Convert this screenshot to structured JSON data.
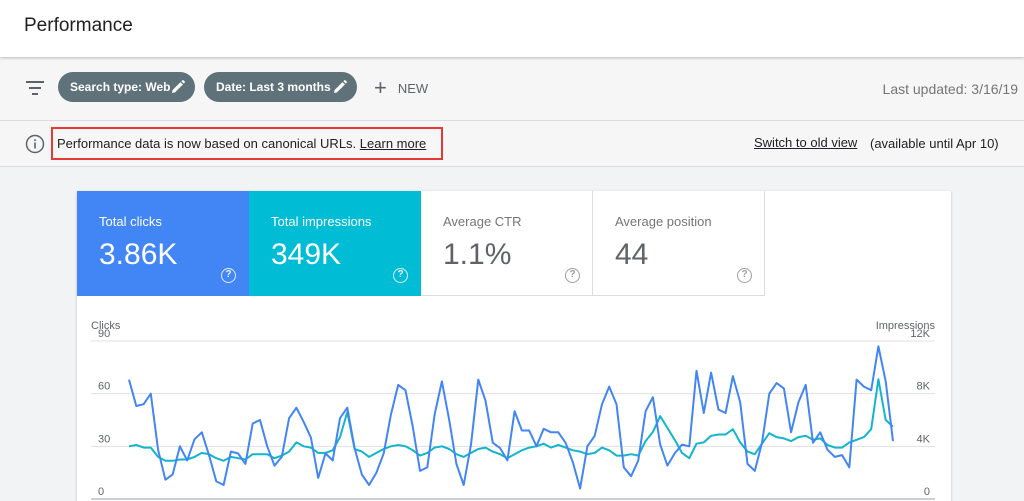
{
  "header": {
    "title": "Performance"
  },
  "filters": {
    "chips": [
      {
        "label": "Search type: Web"
      },
      {
        "label": "Date: Last 3 months"
      }
    ],
    "new_label": "NEW",
    "last_updated": "Last updated: 3/16/19"
  },
  "notice": {
    "text": "Performance data is now based on canonical URLs.",
    "link": "Learn more",
    "switch_link": "Switch to old view",
    "availability": "(available until Apr 10)"
  },
  "metrics": [
    {
      "label": "Total clicks",
      "value": "3.86K",
      "color": "#4285f4"
    },
    {
      "label": "Total impressions",
      "value": "349K",
      "color": "#00bcd4"
    },
    {
      "label": "Average CTR",
      "value": "1.1%"
    },
    {
      "label": "Average position",
      "value": "44"
    }
  ],
  "icons": {
    "filter": "filter-icon",
    "edit": "pencil-icon",
    "add": "plus-icon",
    "info": "info-icon",
    "help": "help-icon"
  },
  "chart_data": {
    "type": "line",
    "left_axis_label": "Clicks",
    "right_axis_label": "Impressions",
    "left_ticks": [
      "90",
      "60",
      "30",
      "0"
    ],
    "right_ticks": [
      "12K",
      "8K",
      "4K",
      "0"
    ],
    "ylim_left": [
      0,
      90
    ],
    "ylim_right": [
      0,
      12000
    ],
    "grid": true,
    "series": [
      {
        "name": "Clicks",
        "color": "#4285f4",
        "axis": "left",
        "values": [
          68,
          53,
          54,
          60,
          28,
          11,
          14,
          30,
          22,
          34,
          38,
          25,
          10,
          8,
          27,
          26,
          20,
          43,
          45,
          30,
          19,
          24,
          46,
          52,
          44,
          35,
          12,
          26,
          22,
          46,
          52,
          29,
          14,
          8,
          15,
          26,
          48,
          65,
          62,
          41,
          16,
          18,
          48,
          67,
          45,
          20,
          8,
          31,
          68,
          56,
          32,
          29,
          22,
          50,
          39,
          39,
          30,
          40,
          38,
          38,
          32,
          21,
          6,
          30,
          36,
          54,
          64,
          54,
          18,
          13,
          22,
          50,
          58,
          31,
          19,
          26,
          31,
          30,
          73,
          49,
          72,
          51,
          49,
          70,
          55,
          20,
          16,
          32,
          60,
          66,
          63,
          38,
          55,
          65,
          32,
          38,
          28,
          24,
          25,
          18,
          68,
          64,
          62,
          87,
          67,
          33
        ]
      },
      {
        "name": "Impressions",
        "color": "#12b5cb",
        "axis": "right",
        "values": [
          4000,
          4100,
          3900,
          3900,
          3200,
          2900,
          2900,
          3000,
          3000,
          3200,
          3500,
          3400,
          3100,
          2900,
          3200,
          3100,
          3000,
          3400,
          3400,
          3400,
          3100,
          3300,
          3600,
          4300,
          4000,
          3900,
          3500,
          3500,
          3700,
          4700,
          6600,
          3800,
          3600,
          3200,
          3500,
          3800,
          4000,
          4100,
          4000,
          3700,
          3300,
          3500,
          3900,
          4000,
          3800,
          3400,
          3200,
          3500,
          3800,
          3900,
          3600,
          3400,
          3100,
          3400,
          3700,
          3900,
          4000,
          4200,
          3900,
          4100,
          3900,
          3700,
          3600,
          3400,
          3500,
          3900,
          3700,
          3300,
          3300,
          3400,
          3300,
          4400,
          5100,
          6300,
          5400,
          4500,
          3500,
          3100,
          4200,
          4300,
          4800,
          4900,
          4900,
          5300,
          4300,
          3600,
          3400,
          4200,
          5000,
          4700,
          4600,
          4400,
          4700,
          4800,
          4500,
          4600,
          4100,
          3900,
          3900,
          4300,
          4500,
          4700,
          5300,
          9100,
          6000,
          5500
        ]
      }
    ]
  }
}
